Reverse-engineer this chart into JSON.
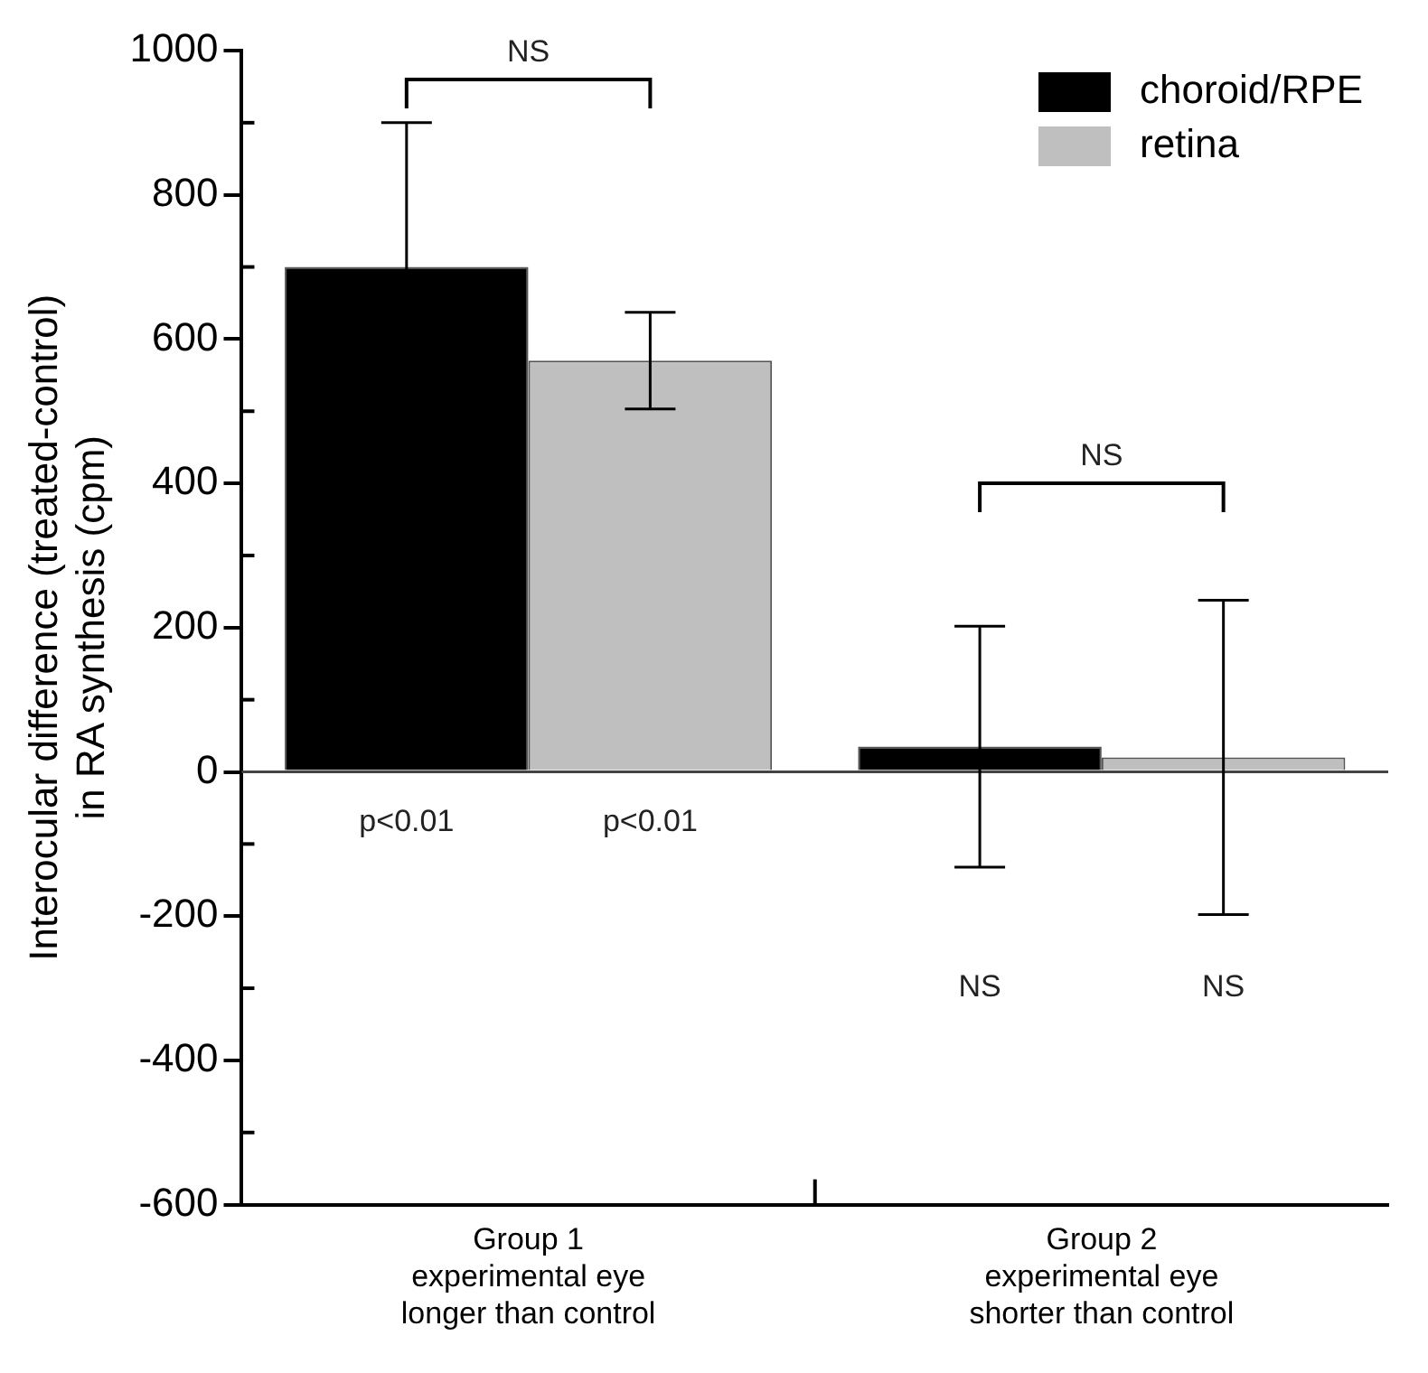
{
  "chart_data": {
    "type": "bar",
    "ylabel": "Interocular difference (treated-control)\nin RA synthesis (cpm)",
    "categories": [
      "Group 1\nexperimental eye\nlonger than control",
      "Group 2\nexperimental eye\nshorter than control"
    ],
    "series": [
      {
        "name": "choroid/RPE",
        "color": "#000000",
        "values": [
          700,
          35
        ],
        "errors": [
          200,
          167
        ]
      },
      {
        "name": "retina",
        "color": "#bfbfbf",
        "values": [
          570,
          20
        ],
        "errors": [
          67,
          218
        ]
      }
    ],
    "ylim": [
      -600,
      1000
    ],
    "yticks": [
      -600,
      -400,
      -200,
      0,
      200,
      400,
      600,
      800,
      1000
    ],
    "grid": false,
    "ref_lines": [
      {
        "axis": "y",
        "value": 0
      }
    ],
    "legend": "top right",
    "annotations": [
      "NS",
      "NS",
      "p<0.01",
      "p<0.01",
      "NS",
      "NS"
    ]
  }
}
